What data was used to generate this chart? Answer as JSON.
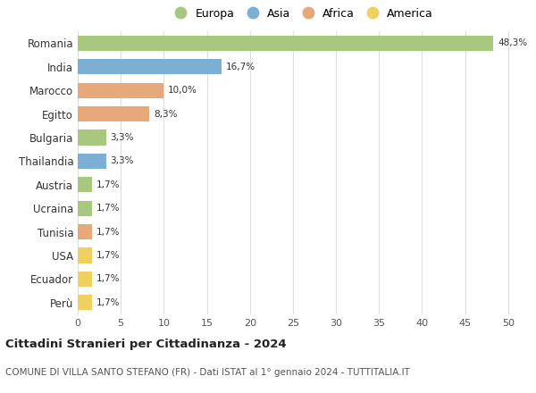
{
  "countries": [
    "Romania",
    "India",
    "Marocco",
    "Egitto",
    "Bulgaria",
    "Thailandia",
    "Austria",
    "Ucraina",
    "Tunisia",
    "USA",
    "Ecuador",
    "Perù"
  ],
  "values": [
    48.3,
    16.7,
    10.0,
    8.3,
    3.3,
    3.3,
    1.7,
    1.7,
    1.7,
    1.7,
    1.7,
    1.7
  ],
  "labels": [
    "48,3%",
    "16,7%",
    "10,0%",
    "8,3%",
    "3,3%",
    "3,3%",
    "1,7%",
    "1,7%",
    "1,7%",
    "1,7%",
    "1,7%",
    "1,7%"
  ],
  "continents": [
    "Europa",
    "Asia",
    "Africa",
    "Africa",
    "Europa",
    "Asia",
    "Europa",
    "Europa",
    "Africa",
    "America",
    "America",
    "America"
  ],
  "continent_colors": {
    "Europa": "#a8c880",
    "Asia": "#7bafd4",
    "Africa": "#e8a97a",
    "America": "#f0d060"
  },
  "legend_order": [
    "Europa",
    "Asia",
    "Africa",
    "America"
  ],
  "title": "Cittadini Stranieri per Cittadinanza - 2024",
  "subtitle": "COMUNE DI VILLA SANTO STEFANO (FR) - Dati ISTAT al 1° gennaio 2024 - TUTTITALIA.IT",
  "xlim": [
    0,
    52
  ],
  "xticks": [
    0,
    5,
    10,
    15,
    20,
    25,
    30,
    35,
    40,
    45,
    50
  ],
  "bg_color": "#ffffff",
  "grid_color": "#dddddd"
}
